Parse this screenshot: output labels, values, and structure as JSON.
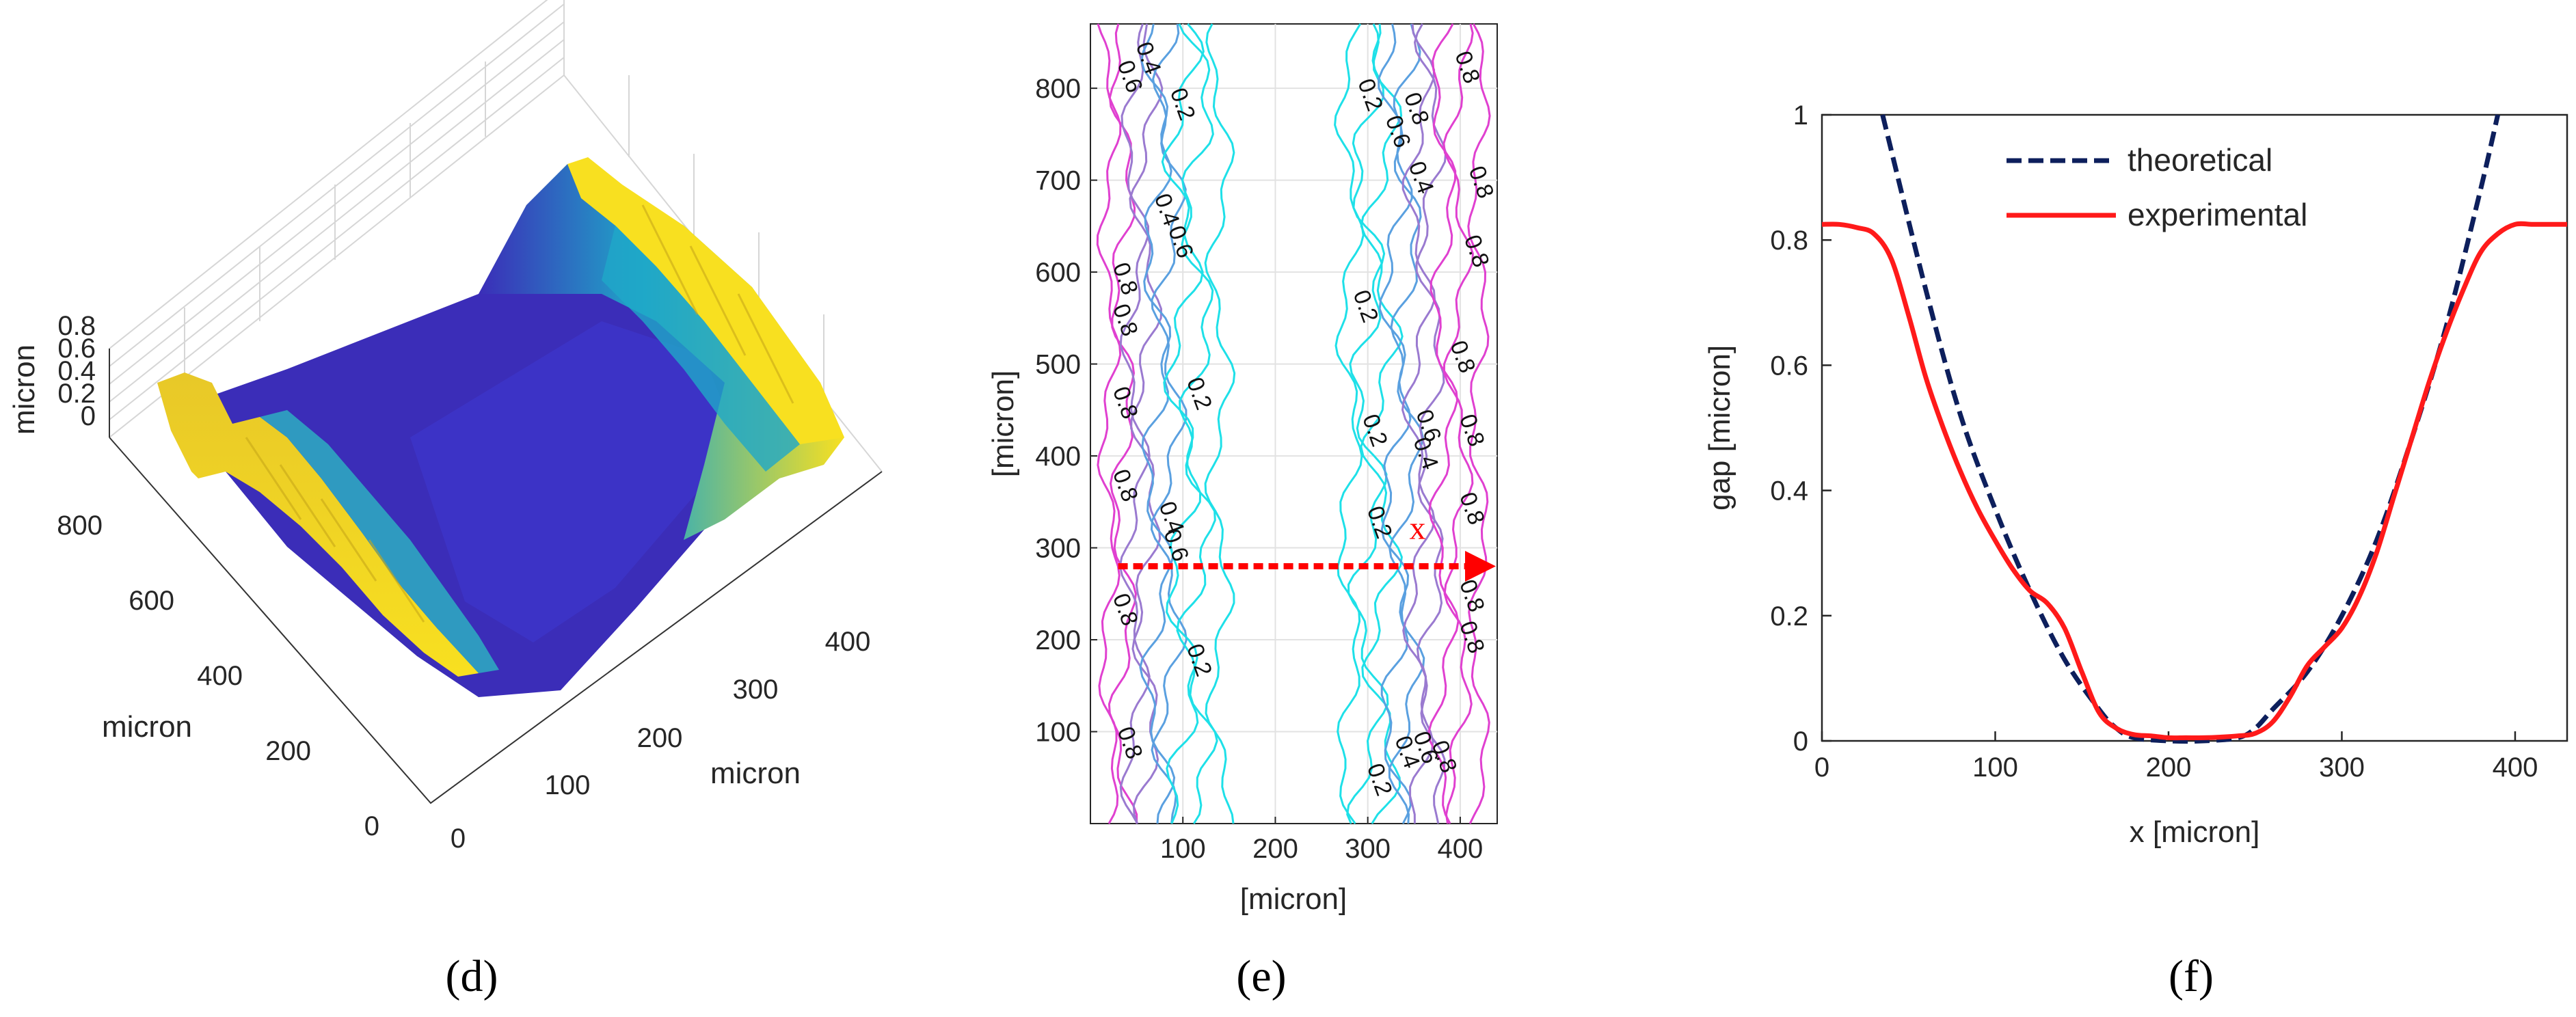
{
  "chart_data": [
    {
      "type": "surface3d",
      "panel_label": "(d)",
      "z_axis": {
        "label": "micron",
        "ticks": [
          "0",
          "0.2",
          "0.4",
          "0.6",
          "0.8"
        ]
      },
      "y_axis": {
        "label": "micron",
        "ticks": [
          "0",
          "200",
          "400",
          "600",
          "800"
        ]
      },
      "x_axis": {
        "label": "micron",
        "ticks": [
          "0",
          "100",
          "200",
          "300",
          "400"
        ]
      },
      "description_colormap": "parula (blue low, yellow high)",
      "colors": {
        "low": "#3b2db8",
        "mid": "#1fa8c8",
        "high": "#f8e020"
      }
    },
    {
      "type": "contour",
      "panel_label": "(e)",
      "xlabel": "[micron]",
      "ylabel": "[micron]",
      "xlim": [
        0,
        440
      ],
      "ylim": [
        0,
        870
      ],
      "x_ticks": [
        "100",
        "200",
        "300",
        "400"
      ],
      "y_ticks": [
        "100",
        "200",
        "300",
        "400",
        "500",
        "600",
        "700",
        "800"
      ],
      "levels": [
        0.2,
        0.4,
        0.6,
        0.8
      ],
      "annotation": {
        "text": "x",
        "arrow_y": 280,
        "arrow_x_from": 30,
        "arrow_x_to": 440
      },
      "contour_labels": [
        {
          "text": "0.6",
          "x": 35,
          "y": 810
        },
        {
          "text": "0.4",
          "x": 55,
          "y": 830
        },
        {
          "text": "0.2",
          "x": 92,
          "y": 780
        },
        {
          "text": "0.8",
          "x": 400,
          "y": 820
        },
        {
          "text": "0.2",
          "x": 295,
          "y": 790
        },
        {
          "text": "0.6",
          "x": 325,
          "y": 750
        },
        {
          "text": "0.8",
          "x": 345,
          "y": 775
        },
        {
          "text": "0.4",
          "x": 350,
          "y": 700
        },
        {
          "text": "0.8",
          "x": 415,
          "y": 695
        },
        {
          "text": "0.8",
          "x": 410,
          "y": 620
        },
        {
          "text": "0.4",
          "x": 75,
          "y": 665
        },
        {
          "text": "0.6",
          "x": 90,
          "y": 630
        },
        {
          "text": "0.8",
          "x": 30,
          "y": 590
        },
        {
          "text": "0.8",
          "x": 30,
          "y": 545
        },
        {
          "text": "0.2",
          "x": 290,
          "y": 560
        },
        {
          "text": "0.8",
          "x": 395,
          "y": 505
        },
        {
          "text": "0.8",
          "x": 30,
          "y": 455
        },
        {
          "text": "0.2",
          "x": 110,
          "y": 465
        },
        {
          "text": "0.2",
          "x": 300,
          "y": 425
        },
        {
          "text": "0.4",
          "x": 355,
          "y": 400
        },
        {
          "text": "0.6",
          "x": 358,
          "y": 430
        },
        {
          "text": "0.8",
          "x": 405,
          "y": 425
        },
        {
          "text": "0.8",
          "x": 30,
          "y": 365
        },
        {
          "text": "0.2",
          "x": 305,
          "y": 325
        },
        {
          "text": "0.8",
          "x": 405,
          "y": 340
        },
        {
          "text": "0.4",
          "x": 80,
          "y": 330
        },
        {
          "text": "0.6",
          "x": 85,
          "y": 300
        },
        {
          "text": "0.8",
          "x": 30,
          "y": 230
        },
        {
          "text": "0.8",
          "x": 405,
          "y": 200
        },
        {
          "text": "0.8",
          "x": 405,
          "y": 245
        },
        {
          "text": "0.2",
          "x": 110,
          "y": 175
        },
        {
          "text": "0.8",
          "x": 35,
          "y": 85
        },
        {
          "text": "0.2",
          "x": 305,
          "y": 45
        },
        {
          "text": "0.4",
          "x": 335,
          "y": 75
        },
        {
          "text": "0.6",
          "x": 355,
          "y": 80
        },
        {
          "text": "0.8",
          "x": 375,
          "y": 70
        }
      ],
      "level_colors": {
        "0.2": "#1ee0e8",
        "0.4": "#5aa0e0",
        "0.6": "#9a7ad0",
        "0.8": "#e040d0"
      }
    },
    {
      "type": "line",
      "panel_label": "(f)",
      "xlabel": "x [micron]",
      "ylabel": "gap [micron]",
      "xlim": [
        0,
        430
      ],
      "ylim": [
        0,
        1
      ],
      "x_ticks": [
        "0",
        "100",
        "200",
        "300",
        "400"
      ],
      "y_ticks": [
        "0",
        "0.2",
        "0.4",
        "0.6",
        "0.8",
        "1"
      ],
      "legend_position": "top-center",
      "series": [
        {
          "name": "theoretical",
          "color": "#0d1f5c",
          "style": "dashed",
          "x": [
            35,
            60,
            80,
            100,
            120,
            140,
            160,
            170,
            180,
            200,
            220,
            240,
            250,
            260,
            280,
            300,
            320,
            340,
            360,
            380,
            390
          ],
          "y": [
            1.0,
            0.72,
            0.52,
            0.37,
            0.24,
            0.13,
            0.05,
            0.02,
            0.005,
            0.0,
            0.0,
            0.005,
            0.02,
            0.05,
            0.11,
            0.2,
            0.32,
            0.48,
            0.66,
            0.88,
            1.0
          ]
        },
        {
          "name": "experimental",
          "color": "#ff1a1a",
          "style": "solid",
          "x": [
            0,
            10,
            20,
            30,
            40,
            50,
            60,
            70,
            80,
            90,
            100,
            110,
            120,
            130,
            140,
            150,
            160,
            170,
            180,
            190,
            200,
            210,
            220,
            230,
            240,
            250,
            260,
            270,
            280,
            290,
            300,
            310,
            320,
            330,
            340,
            350,
            360,
            370,
            380,
            390,
            400,
            410,
            420,
            430
          ],
          "y": [
            0.825,
            0.825,
            0.82,
            0.81,
            0.77,
            0.68,
            0.58,
            0.5,
            0.43,
            0.37,
            0.32,
            0.275,
            0.24,
            0.22,
            0.18,
            0.11,
            0.045,
            0.02,
            0.01,
            0.008,
            0.005,
            0.005,
            0.005,
            0.006,
            0.008,
            0.012,
            0.03,
            0.07,
            0.12,
            0.15,
            0.18,
            0.23,
            0.3,
            0.39,
            0.48,
            0.57,
            0.65,
            0.72,
            0.78,
            0.81,
            0.825,
            0.825,
            0.825,
            0.825
          ]
        }
      ]
    }
  ]
}
